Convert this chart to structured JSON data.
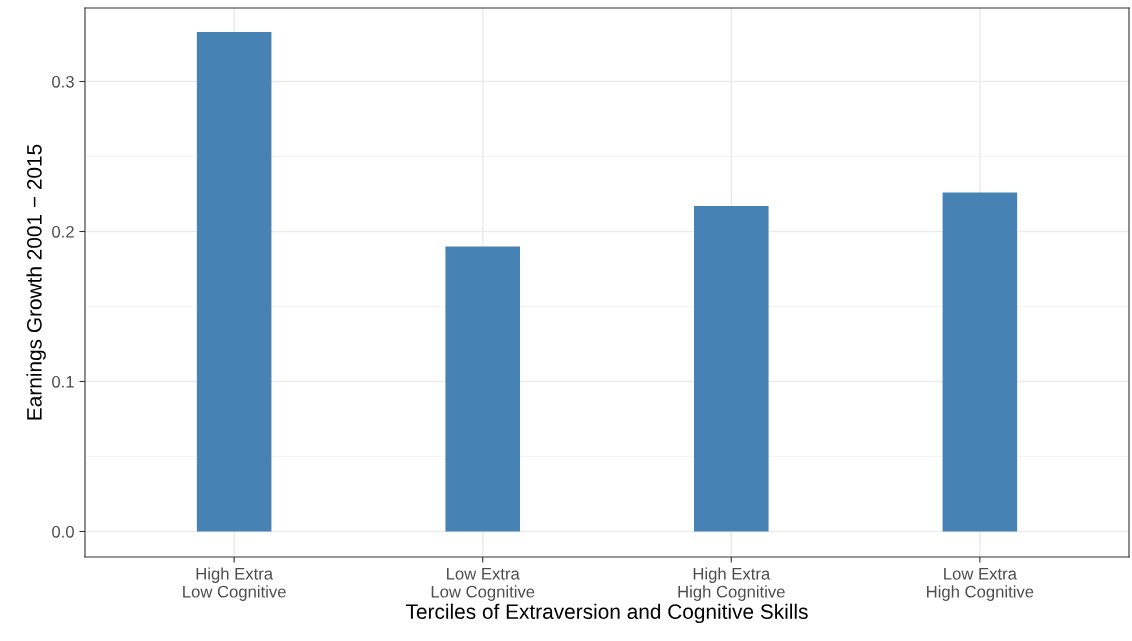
{
  "chart_data": {
    "type": "bar",
    "xlabel": "Terciles of Extraversion and Cognitive Skills",
    "ylabel": "Earnings Growth 2001 − 2015",
    "categories": [
      "High Extra\nLow Cognitive",
      "Low Extra\nLow Cognitive",
      "High Extra\nHigh Cognitive",
      "Low Extra\nHigh Cognitive"
    ],
    "values": [
      0.333,
      0.19,
      0.217,
      0.226
    ],
    "color": "#4682b4",
    "ylim": [
      -0.017,
      0.349
    ],
    "yticks": [
      {
        "value": 0,
        "label": "0.0"
      },
      {
        "value": 0.1,
        "label": "0.1"
      },
      {
        "value": 0.2,
        "label": "0.2"
      },
      {
        "value": 0.3,
        "label": "0.3"
      }
    ],
    "grid": true
  }
}
